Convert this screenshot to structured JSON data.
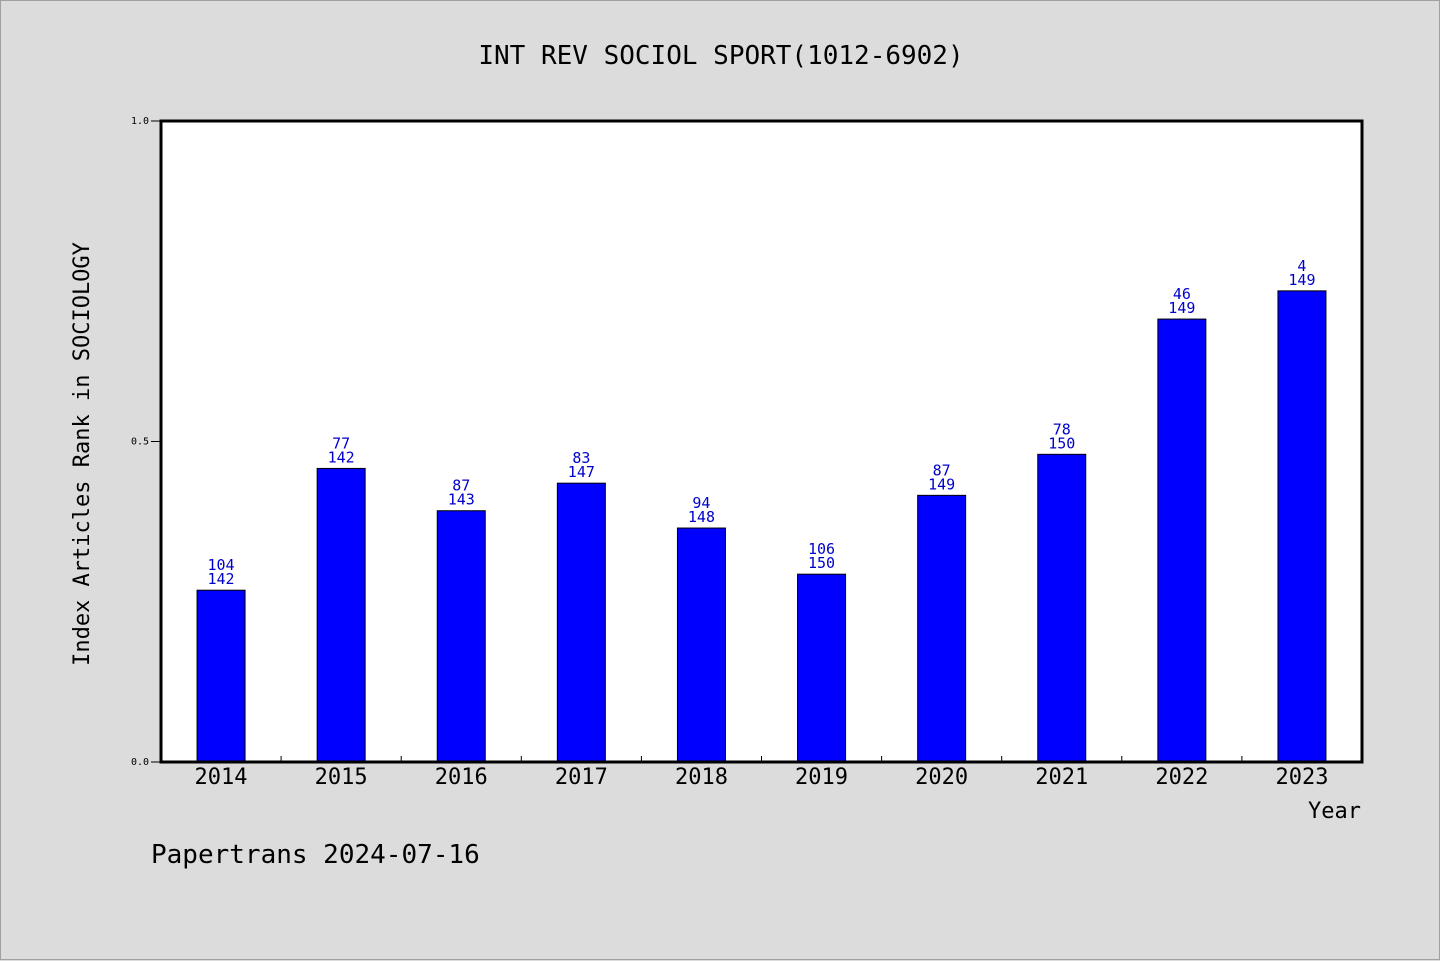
{
  "chart_data": {
    "type": "bar",
    "title": "INT REV SOCIOL SPORT(1012-6902)",
    "xlabel": "Year",
    "ylabel": "Index Articles Rank in SOCIOLOGY",
    "ylim": [
      0,
      1.0
    ],
    "yticks": [
      "0.0",
      "0.5",
      "1.0"
    ],
    "categories": [
      "2014",
      "2015",
      "2016",
      "2017",
      "2018",
      "2019",
      "2020",
      "2021",
      "2022",
      "2023"
    ],
    "values": [
      0.268,
      0.458,
      0.392,
      0.435,
      0.365,
      0.293,
      0.416,
      0.48,
      0.691,
      0.735
    ],
    "ranks": [
      "104",
      "77",
      "87",
      "83",
      "94",
      "106",
      "87",
      "78",
      "46",
      "4"
    ],
    "totals": [
      "142",
      "142",
      "143",
      "147",
      "148",
      "150",
      "149",
      "150",
      "149",
      "149"
    ],
    "bar_color": "#0000ff",
    "label_color": "#0000cc",
    "grid": false
  },
  "footer": "Papertrans 2024-07-16"
}
